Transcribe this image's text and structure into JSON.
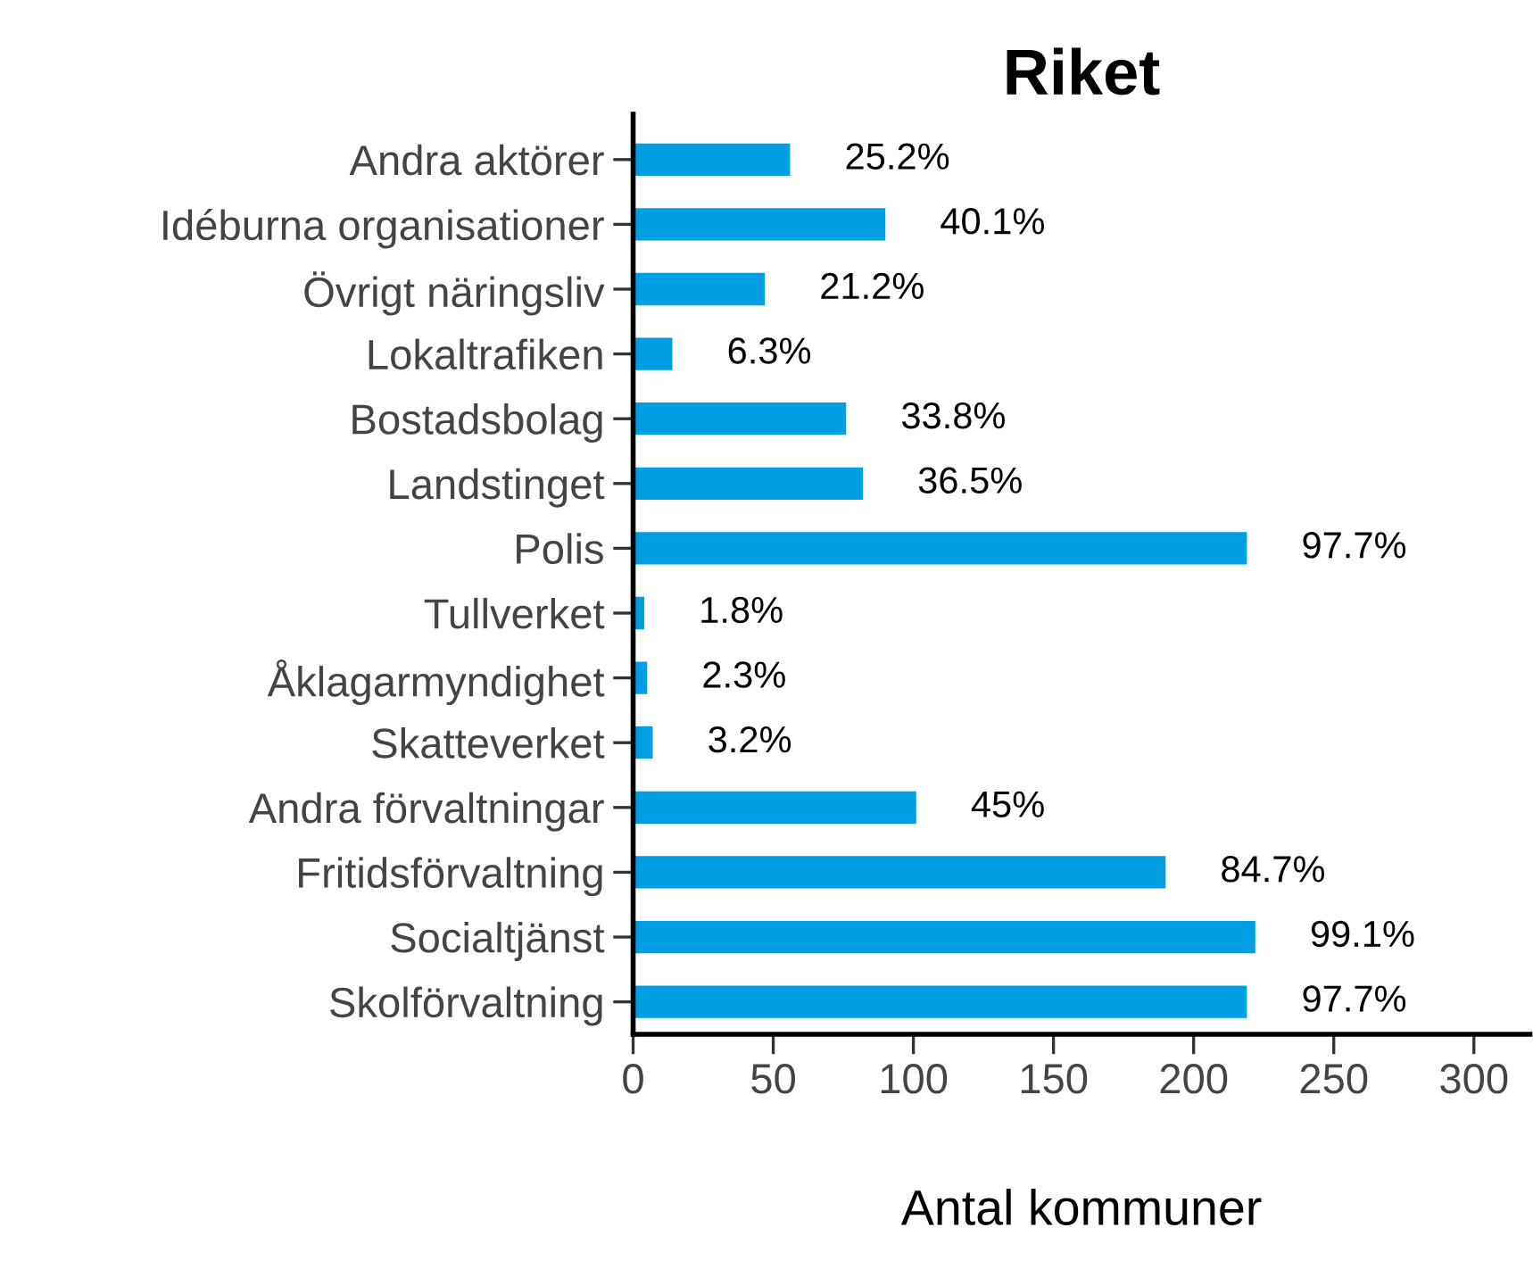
{
  "chart_data": {
    "type": "bar",
    "orientation": "horizontal",
    "title": "Riket",
    "xlabel": "Antal kommuner",
    "categories": [
      "Andra aktörer",
      "Idéburna organisationer",
      "Övrigt näringsliv",
      "Lokaltrafiken",
      "Bostadsbolag",
      "Landstinget",
      "Polis",
      "Tullverket",
      "Åklagarmyndighet",
      "Skatteverket",
      "Andra förvaltningar",
      "Fritidsförvaltning",
      "Socialtjänst",
      "Skolförvaltning"
    ],
    "values": [
      56,
      90,
      47,
      14,
      76,
      82,
      219,
      4,
      5,
      7,
      101,
      190,
      222,
      219
    ],
    "annotations": [
      {
        "text": "25.2%",
        "x": 56,
        "y": "Andra aktörer"
      },
      {
        "text": "40.1%",
        "x": 90,
        "y": "Idéburna organisationer"
      },
      {
        "text": "21.2%",
        "x": 47,
        "y": "Övrigt näringsliv"
      },
      {
        "text": "6.3%",
        "x": 14,
        "y": "Lokaltrafiken"
      },
      {
        "text": "33.8%",
        "x": 76,
        "y": "Bostadsbolag"
      },
      {
        "text": "36.5%",
        "x": 82,
        "y": "Landstinget"
      },
      {
        "text": "97.7%",
        "x": 219,
        "y": "Polis"
      },
      {
        "text": "1.8%",
        "x": 4,
        "y": "Tullverket"
      },
      {
        "text": "2.3%",
        "x": 5,
        "y": "Åklagarmyndighet"
      },
      {
        "text": "3.2%",
        "x": 7,
        "y": "Skatteverket"
      },
      {
        "text": "45%",
        "x": 101,
        "y": "Andra förvaltningar"
      },
      {
        "text": "84.7%",
        "x": 190,
        "y": "Fritidsförvaltning"
      },
      {
        "text": "99.1%",
        "x": 222,
        "y": "Socialtjänst"
      },
      {
        "text": "97.7%",
        "x": 219,
        "y": "Skolförvaltning"
      }
    ],
    "color": "#009fe3",
    "xlim": [
      0,
      320
    ],
    "xticks": [
      0,
      50,
      100,
      150,
      200,
      250,
      300
    ],
    "grid": false,
    "legend": false
  }
}
